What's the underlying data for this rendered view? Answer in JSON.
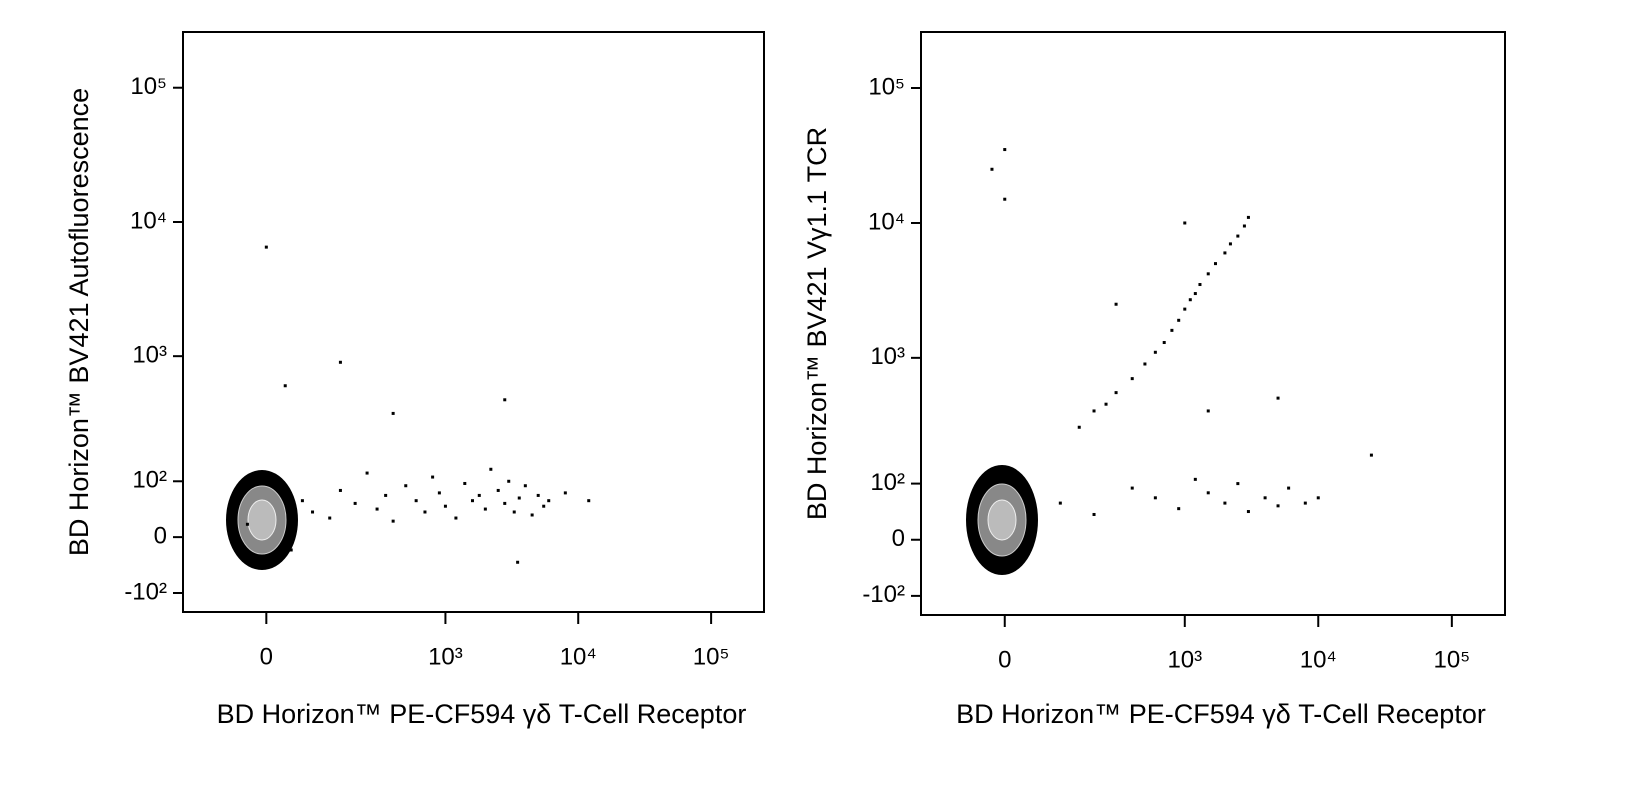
{
  "chart_data": [
    {
      "type": "scatter",
      "xlabel": "BD Horizon™  PE-CF594  γδ T-Cell Receptor",
      "ylabel": "BD Horizon™  BV421  Autofluorescence",
      "color": "#000000",
      "xlim": [
        -180,
        250000
      ],
      "ylim": [
        -150,
        260000
      ],
      "xticks": [
        0,
        {
          "value": 1000,
          "label": "10³"
        },
        {
          "value": 10000,
          "label": "10⁴"
        },
        {
          "value": 100000,
          "label": "10⁵"
        }
      ],
      "yticks": [
        {
          "value": -100,
          "label": "-10²"
        },
        0,
        {
          "value": 100,
          "label": "10²"
        },
        {
          "value": 1000,
          "label": "10³"
        },
        {
          "value": 10000,
          "label": "10⁴"
        },
        {
          "value": 100000,
          "label": "10⁵"
        }
      ],
      "x": [
        -30,
        10,
        40,
        60,
        80,
        120,
        150,
        200,
        250,
        300,
        350,
        400,
        500,
        600,
        700,
        800,
        900,
        1000,
        1200,
        1400,
        1600,
        1800,
        2000,
        2200,
        2500,
        2800,
        3000,
        3300,
        3600,
        4000,
        4500,
        5000,
        5500,
        6000,
        8000,
        12000,
        0,
        150,
        30,
        400,
        2800,
        3500
      ],
      "values": [
        20,
        90,
        -20,
        60,
        40,
        30,
        80,
        55,
        120,
        45,
        70,
        25,
        90,
        60,
        40,
        110,
        75,
        50,
        30,
        95,
        60,
        70,
        45,
        130,
        80,
        55,
        100,
        40,
        65,
        90,
        35,
        70,
        50,
        60,
        75,
        60,
        6500,
        900,
        600,
        370,
        470,
        -40
      ]
    },
    {
      "type": "scatter",
      "xlabel": "BD Horizon™  PE-CF594  γδ T-Cell Receptor",
      "ylabel": "BD Horizon™  BV421   Vγ1.1  TCR",
      "color": "#000000",
      "xlim": [
        -180,
        250000
      ],
      "ylim": [
        -150,
        260000
      ],
      "xticks": [
        0,
        {
          "value": 1000,
          "label": "10³"
        },
        {
          "value": 10000,
          "label": "10⁴"
        },
        {
          "value": 100000,
          "label": "10⁵"
        }
      ],
      "yticks": [
        {
          "value": -100,
          "label": "-10²"
        },
        0,
        {
          "value": 100,
          "label": "10²"
        },
        {
          "value": 1000,
          "label": "10³"
        },
        {
          "value": 10000,
          "label": "10⁴"
        },
        {
          "value": 100000,
          "label": "10⁵"
        }
      ],
      "x": [
        150,
        200,
        250,
        300,
        400,
        500,
        600,
        700,
        800,
        900,
        1000,
        1100,
        1200,
        1300,
        1500,
        1700,
        2000,
        2200,
        2500,
        2800,
        3000,
        100,
        200,
        400,
        600,
        900,
        1200,
        1500,
        2000,
        2500,
        3000,
        4000,
        5000,
        6000,
        8000,
        10000,
        -20,
        0,
        0,
        1000,
        25000,
        5000,
        300,
        1500
      ],
      "values": [
        300,
        400,
        450,
        550,
        700,
        900,
        1100,
        1300,
        1600,
        1900,
        2300,
        2700,
        3000,
        3500,
        4200,
        5000,
        6000,
        7000,
        8000,
        9500,
        11000,
        60,
        40,
        90,
        70,
        50,
        110,
        80,
        60,
        100,
        45,
        70,
        55,
        90,
        60,
        70,
        25000,
        35000,
        15000,
        10000,
        180,
        500,
        2500,
        400
      ]
    }
  ]
}
